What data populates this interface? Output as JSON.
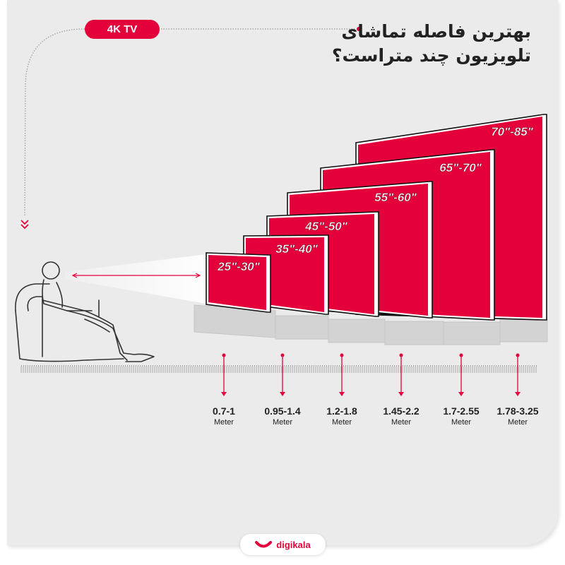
{
  "header": {
    "title_line1": "بهترین فاصله تماشای",
    "title_line2": "تلویزیون چند متراست؟",
    "badge": "4K TV"
  },
  "colors": {
    "accent": "#e4003a",
    "background": "#ebebeb",
    "text": "#222222"
  },
  "tvs": [
    {
      "size": "25\"-30\"",
      "distance": "0.7-1",
      "unit": "Meter"
    },
    {
      "size": "35\"-40\"",
      "distance": "0.95-1.4",
      "unit": "Meter"
    },
    {
      "size": "45\"-50\"",
      "distance": "1.2-1.8",
      "unit": "Meter"
    },
    {
      "size": "55\"-60\"",
      "distance": "1.45-2.2",
      "unit": "Meter"
    },
    {
      "size": "65\"-70\"",
      "distance": "1.7-2.55",
      "unit": "Meter"
    },
    {
      "size": "70\"-85\"",
      "distance": "1.78-3.25",
      "unit": "Meter"
    }
  ],
  "footer": {
    "brand": "digikala"
  }
}
